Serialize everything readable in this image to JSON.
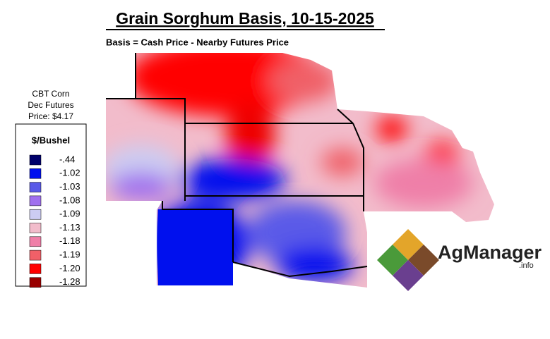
{
  "header": {
    "title": "Grain Sorghum Basis, 10-15-2025",
    "subtitle": "Basis = Cash Price - Nearby Futures Price"
  },
  "futures_note": {
    "lines": [
      "CBT Corn",
      "Dec Futures",
      "Price: $4.17"
    ]
  },
  "legend": {
    "title": "$/Bushel",
    "items": [
      {
        "label": "-.44",
        "color": "#00006b"
      },
      {
        "label": "-1.02",
        "color": "#0010ee"
      },
      {
        "label": "-1.03",
        "color": "#5a5ae8"
      },
      {
        "label": "-1.08",
        "color": "#a070ee"
      },
      {
        "label": "-1.09",
        "color": "#ccccf2"
      },
      {
        "label": "-1.13",
        "color": "#f2bccb"
      },
      {
        "label": "-1.18",
        "color": "#ef7fa8"
      },
      {
        "label": "-1.19",
        "color": "#f06068"
      },
      {
        "label": "-1.20",
        "color": "#ff0000"
      },
      {
        "label": "-1.28",
        "color": "#990000"
      }
    ]
  },
  "logo": {
    "name": "AgManager",
    "suffix": ".info"
  }
}
